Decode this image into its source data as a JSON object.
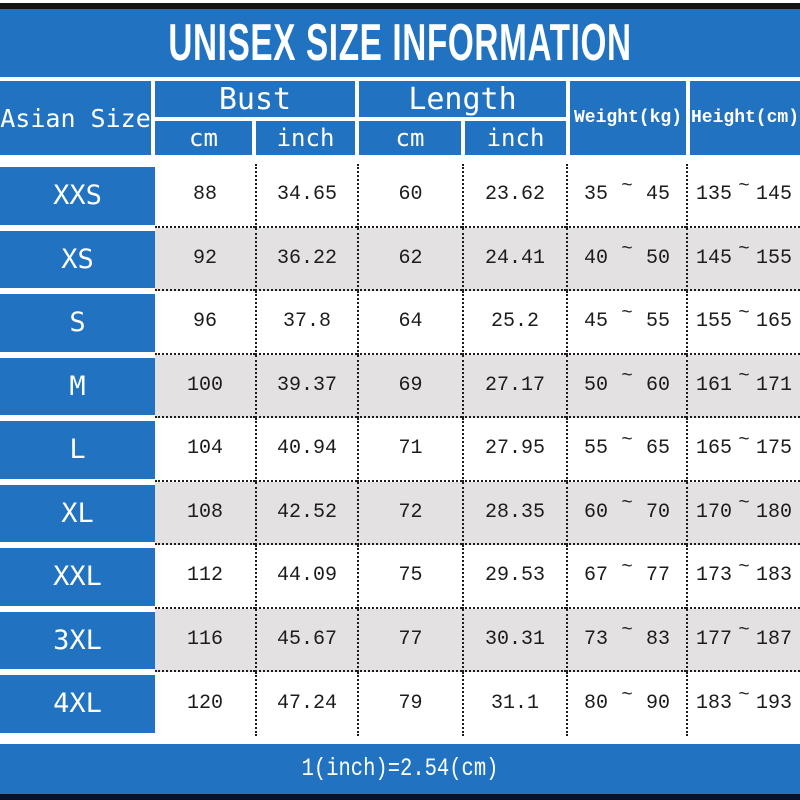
{
  "title": "UNISEX SIZE INFORMATION",
  "footer": {
    "note": "1(inch)=2.54(cm)"
  },
  "colors": {
    "blue": "#2173c2",
    "row_alt": "#e3e1e2",
    "top_bar": "#141414",
    "bottom_bar": "#0d1126",
    "bottom_strip": "#b5b5b5"
  },
  "table": {
    "tilde": "~",
    "headers": {
      "asian_size": "Asian Size",
      "bust": "Bust",
      "length": "Length",
      "cm": "cm",
      "inch": "inch",
      "weight": "Weight(kg)",
      "height": "Height(cm)"
    },
    "rows": [
      {
        "size": "XXS",
        "bust_cm": "88",
        "bust_inch": "34.65",
        "length_cm": "60",
        "length_inch": "23.62",
        "weight_min": "35",
        "weight_max": "45",
        "height_min": "135",
        "height_max": "145"
      },
      {
        "size": "XS",
        "bust_cm": "92",
        "bust_inch": "36.22",
        "length_cm": "62",
        "length_inch": "24.41",
        "weight_min": "40",
        "weight_max": "50",
        "height_min": "145",
        "height_max": "155"
      },
      {
        "size": "S",
        "bust_cm": "96",
        "bust_inch": "37.8",
        "length_cm": "64",
        "length_inch": "25.2",
        "weight_min": "45",
        "weight_max": "55",
        "height_min": "155",
        "height_max": "165"
      },
      {
        "size": "M",
        "bust_cm": "100",
        "bust_inch": "39.37",
        "length_cm": "69",
        "length_inch": "27.17",
        "weight_min": "50",
        "weight_max": "60",
        "height_min": "161",
        "height_max": "171"
      },
      {
        "size": "L",
        "bust_cm": "104",
        "bust_inch": "40.94",
        "length_cm": "71",
        "length_inch": "27.95",
        "weight_min": "55",
        "weight_max": "65",
        "height_min": "165",
        "height_max": "175"
      },
      {
        "size": "XL",
        "bust_cm": "108",
        "bust_inch": "42.52",
        "length_cm": "72",
        "length_inch": "28.35",
        "weight_min": "60",
        "weight_max": "70",
        "height_min": "170",
        "height_max": "180"
      },
      {
        "size": "XXL",
        "bust_cm": "112",
        "bust_inch": "44.09",
        "length_cm": "75",
        "length_inch": "29.53",
        "weight_min": "67",
        "weight_max": "77",
        "height_min": "173",
        "height_max": "183"
      },
      {
        "size": "3XL",
        "bust_cm": "116",
        "bust_inch": "45.67",
        "length_cm": "77",
        "length_inch": "30.31",
        "weight_min": "73",
        "weight_max": "83",
        "height_min": "177",
        "height_max": "187"
      },
      {
        "size": "4XL",
        "bust_cm": "120",
        "bust_inch": "47.24",
        "length_cm": "79",
        "length_inch": "31.1",
        "weight_min": "80",
        "weight_max": "90",
        "height_min": "183",
        "height_max": "193"
      }
    ]
  },
  "chart_data": {
    "type": "table",
    "title": "UNISEX SIZE INFORMATION",
    "columns": [
      "Asian Size",
      "Bust cm",
      "Bust inch",
      "Length cm",
      "Length inch",
      "Weight(kg)",
      "Height(cm)"
    ],
    "rows": [
      [
        "XXS",
        88,
        34.65,
        60,
        23.62,
        "35~45",
        "135~145"
      ],
      [
        "XS",
        92,
        36.22,
        62,
        24.41,
        "40~50",
        "145~155"
      ],
      [
        "S",
        96,
        37.8,
        64,
        25.2,
        "45~55",
        "155~165"
      ],
      [
        "M",
        100,
        39.37,
        69,
        27.17,
        "50~60",
        "161~171"
      ],
      [
        "L",
        104,
        40.94,
        71,
        27.95,
        "55~65",
        "165~175"
      ],
      [
        "XL",
        108,
        42.52,
        72,
        28.35,
        "60~70",
        "170~180"
      ],
      [
        "XXL",
        112,
        44.09,
        75,
        29.53,
        "67~77",
        "173~183"
      ],
      [
        "3XL",
        116,
        45.67,
        77,
        30.31,
        "73~83",
        "177~187"
      ],
      [
        "4XL",
        120,
        47.24,
        79,
        31.1,
        "80~90",
        "183~193"
      ]
    ],
    "note": "1(inch)=2.54(cm)"
  }
}
